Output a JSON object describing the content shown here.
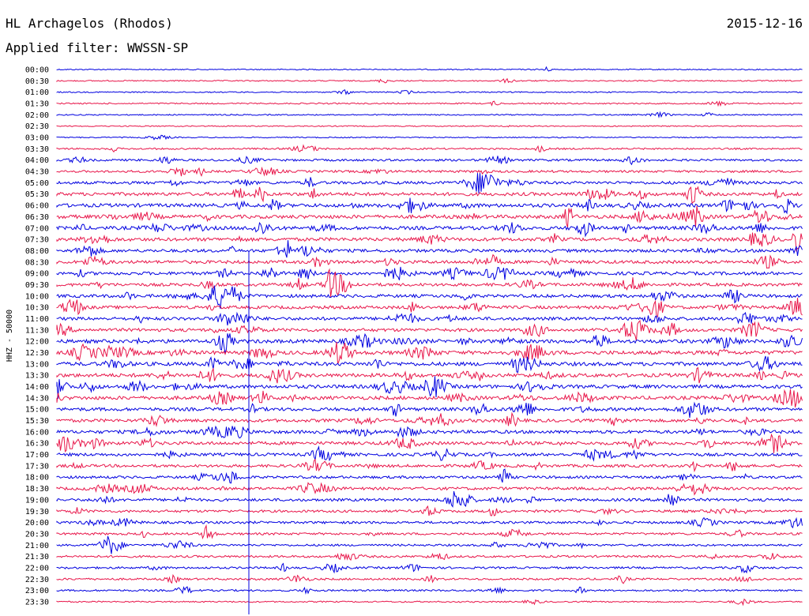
{
  "header": {
    "station": "HL Archagelos (Rhodos)",
    "date": "2015-12-16",
    "filter": "Applied filter: WWSSN-SP"
  },
  "chart_data": {
    "type": "line",
    "ylabel": "HHZ - 50000",
    "row_labels": [
      "00:00",
      "00:30",
      "01:00",
      "01:30",
      "02:00",
      "02:30",
      "03:00",
      "03:30",
      "04:00",
      "04:30",
      "05:00",
      "05:30",
      "06:00",
      "06:30",
      "07:00",
      "07:30",
      "08:00",
      "08:30",
      "09:00",
      "09:30",
      "10:00",
      "10:30",
      "11:00",
      "11:30",
      "12:00",
      "12:30",
      "13:00",
      "13:30",
      "14:00",
      "14:30",
      "15:00",
      "15:30",
      "16:00",
      "16:30",
      "17:00",
      "17:30",
      "18:00",
      "18:30",
      "19:00",
      "19:30",
      "20:00",
      "20:30",
      "21:00",
      "21:30",
      "22:00",
      "22:30",
      "23:00",
      "23:30"
    ],
    "colors": [
      "#0000e0",
      "#e8164a"
    ],
    "trace_activity": [
      0.12,
      0.15,
      0.14,
      0.18,
      0.15,
      0.12,
      0.12,
      0.28,
      0.42,
      0.45,
      0.62,
      0.75,
      0.82,
      0.82,
      0.8,
      0.78,
      0.68,
      0.7,
      0.72,
      0.68,
      0.7,
      0.68,
      0.7,
      0.72,
      0.85,
      0.88,
      0.86,
      0.85,
      0.8,
      0.82,
      0.76,
      0.7,
      0.72,
      0.72,
      0.66,
      0.6,
      0.55,
      0.62,
      0.58,
      0.52,
      0.5,
      0.45,
      0.38,
      0.42,
      0.4,
      0.38,
      0.32,
      0.2
    ]
  }
}
